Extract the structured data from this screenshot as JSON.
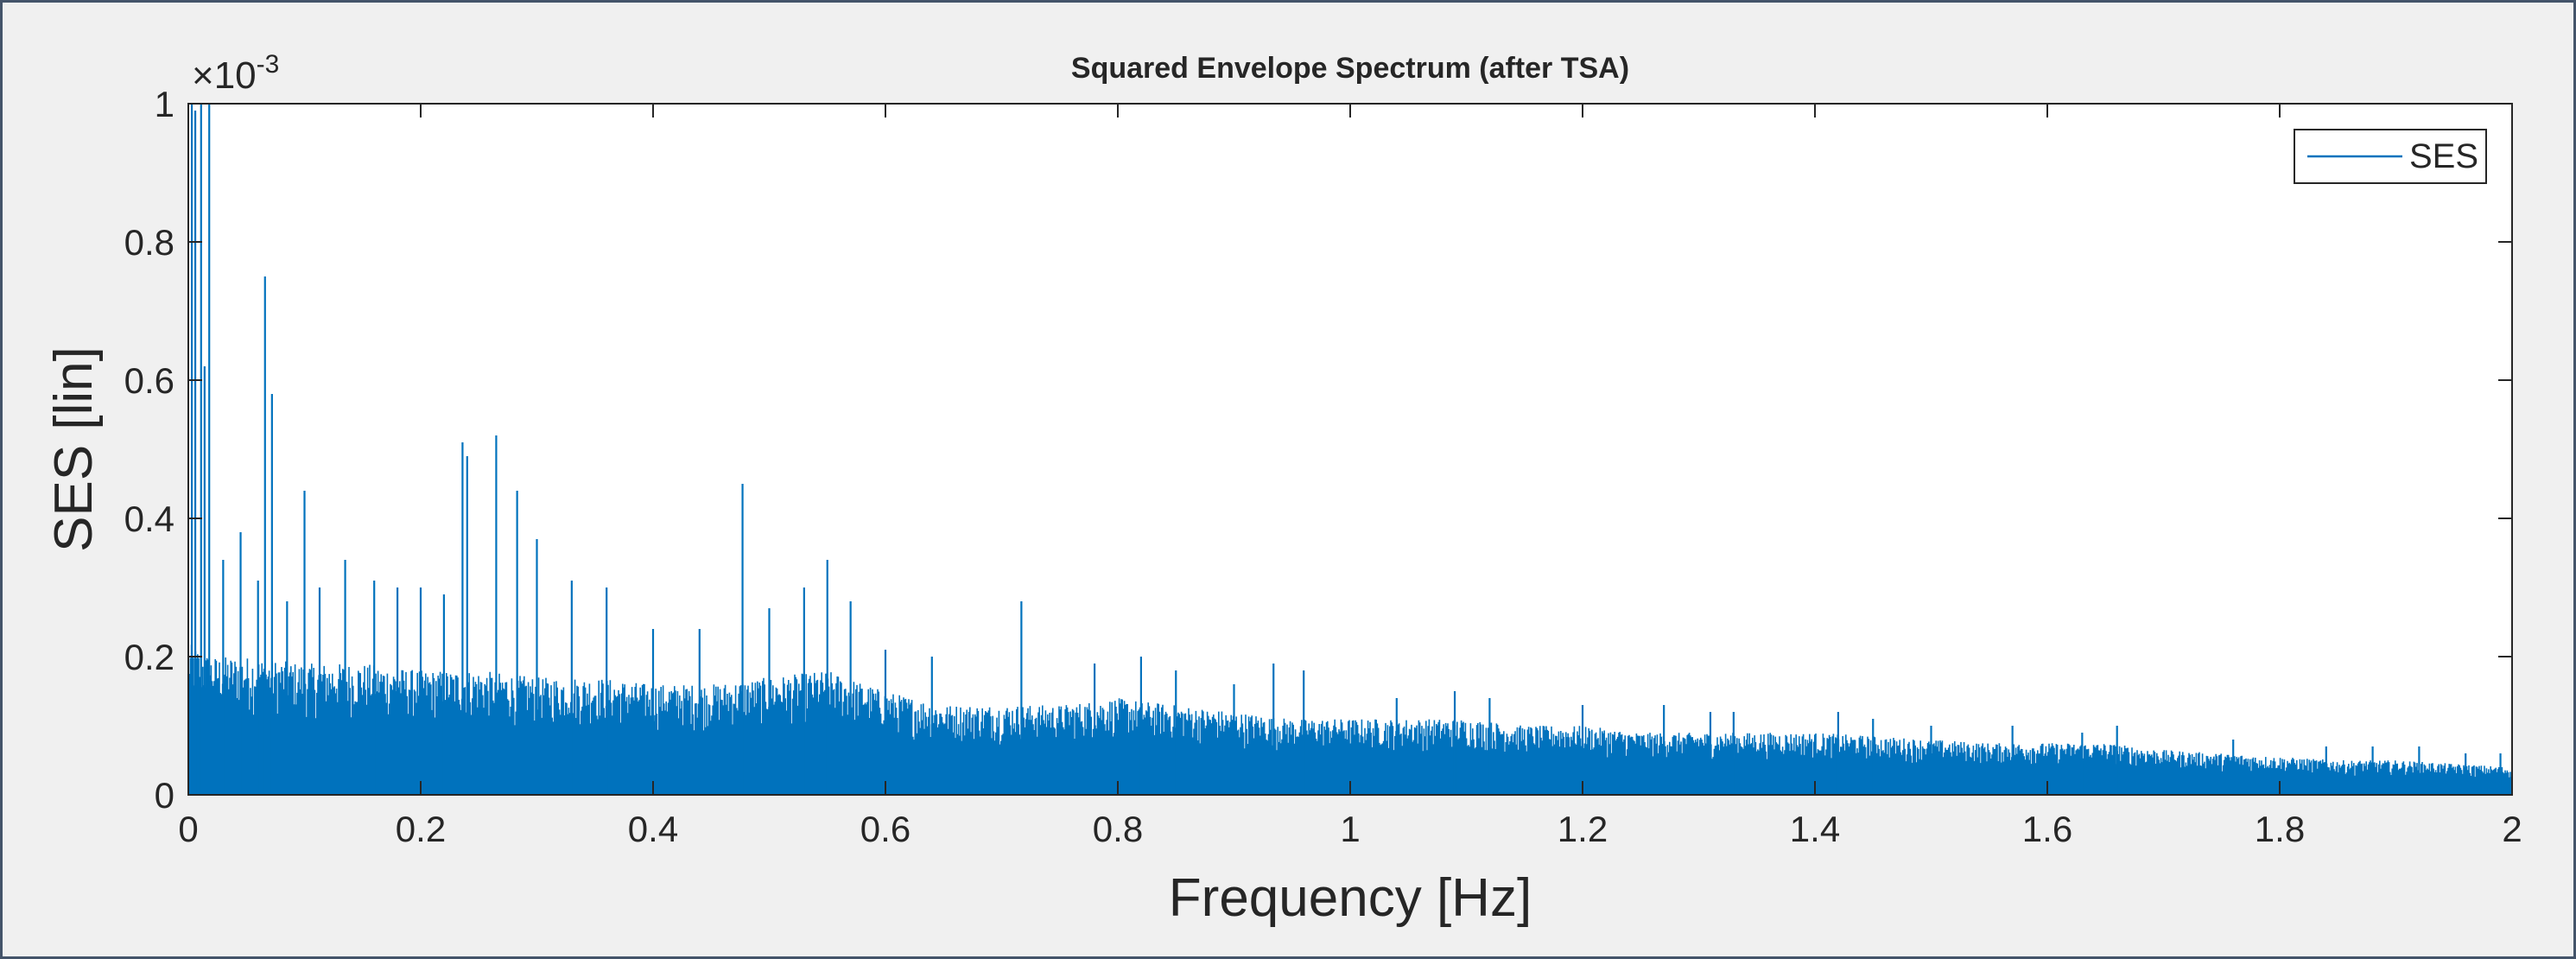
{
  "chart_data": {
    "type": "line",
    "title": "Squared Envelope Spectrum (after TSA)",
    "xlabel": "Frequency [Hz]",
    "ylabel": "SES [lin]",
    "y_exponent_label": "×10",
    "y_exponent_power": "-3",
    "xlim": [
      0,
      2
    ],
    "ylim": [
      0,
      1
    ],
    "x_ticks": [
      0,
      0.2,
      0.4,
      0.6,
      0.8,
      1,
      1.2,
      1.4,
      1.6,
      1.8,
      2
    ],
    "x_tick_labels": [
      "0",
      "0.2",
      "0.4",
      "0.6",
      "0.8",
      "1",
      "1.2",
      "1.4",
      "1.6",
      "1.8",
      "2"
    ],
    "y_ticks": [
      0,
      0.2,
      0.4,
      0.6,
      0.8,
      1
    ],
    "y_tick_labels": [
      "0",
      "0.2",
      "0.4",
      "0.6",
      "0.8",
      "1"
    ],
    "grid": false,
    "legend_position": "top-right",
    "series": [
      {
        "name": "SES",
        "color": "#0072bd",
        "envelope": {
          "x": [
            0,
            0.02,
            0.05,
            0.1,
            0.15,
            0.2,
            0.25,
            0.3,
            0.35,
            0.4,
            0.45,
            0.5,
            0.55,
            0.6,
            0.65,
            0.7,
            0.75,
            0.8,
            0.85,
            0.9,
            0.95,
            1.0,
            1.05,
            1.1,
            1.15,
            1.2,
            1.25,
            1.3,
            1.35,
            1.4,
            1.45,
            1.5,
            1.55,
            1.6,
            1.65,
            1.7,
            1.75,
            1.8,
            1.85,
            1.9,
            1.95,
            2.0
          ],
          "y": [
            0.22,
            0.2,
            0.2,
            0.19,
            0.19,
            0.18,
            0.18,
            0.17,
            0.17,
            0.16,
            0.16,
            0.17,
            0.18,
            0.15,
            0.13,
            0.13,
            0.13,
            0.14,
            0.13,
            0.12,
            0.11,
            0.11,
            0.11,
            0.11,
            0.1,
            0.1,
            0.09,
            0.09,
            0.09,
            0.09,
            0.085,
            0.08,
            0.075,
            0.075,
            0.075,
            0.065,
            0.06,
            0.055,
            0.05,
            0.05,
            0.045,
            0.04
          ]
        },
        "peaks": {
          "x": [
            0.003,
            0.006,
            0.011,
            0.014,
            0.018,
            0.03,
            0.045,
            0.06,
            0.066,
            0.072,
            0.085,
            0.1,
            0.113,
            0.135,
            0.16,
            0.18,
            0.2,
            0.22,
            0.236,
            0.24,
            0.265,
            0.283,
            0.3,
            0.33,
            0.36,
            0.4,
            0.44,
            0.477,
            0.5,
            0.53,
            0.55,
            0.57,
            0.6,
            0.64,
            0.717,
            0.78,
            0.82,
            0.85,
            0.9,
            0.934,
            0.96,
            1.04,
            1.09,
            1.12,
            1.2,
            1.27,
            1.31,
            1.33,
            1.42,
            1.45,
            1.5,
            1.57,
            1.63,
            1.66,
            1.76,
            1.84,
            1.88,
            1.92,
            1.96,
            1.99
          ],
          "y": [
            1.0,
            0.99,
            1.0,
            0.62,
            1.0,
            0.34,
            0.38,
            0.31,
            0.75,
            0.58,
            0.28,
            0.44,
            0.3,
            0.34,
            0.31,
            0.3,
            0.3,
            0.29,
            0.51,
            0.49,
            0.52,
            0.44,
            0.37,
            0.31,
            0.3,
            0.24,
            0.24,
            0.45,
            0.27,
            0.3,
            0.34,
            0.28,
            0.21,
            0.2,
            0.28,
            0.19,
            0.2,
            0.18,
            0.16,
            0.19,
            0.18,
            0.14,
            0.15,
            0.14,
            0.13,
            0.13,
            0.12,
            0.12,
            0.12,
            0.11,
            0.1,
            0.1,
            0.09,
            0.1,
            0.08,
            0.07,
            0.07,
            0.07,
            0.06,
            0.06
          ]
        }
      }
    ]
  }
}
